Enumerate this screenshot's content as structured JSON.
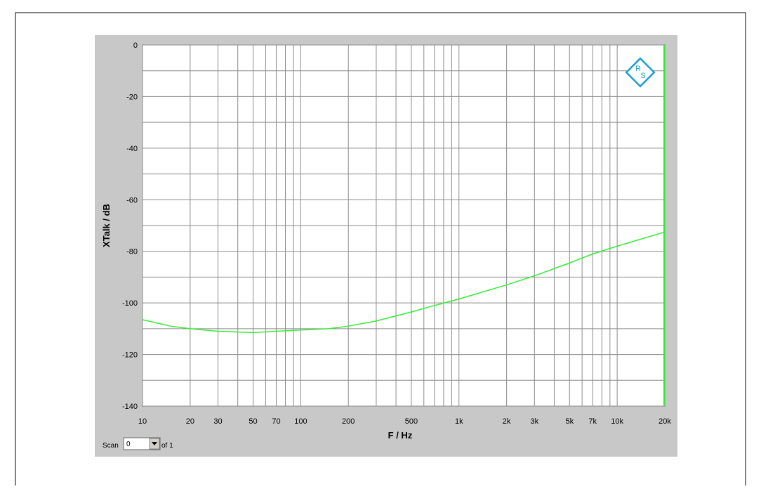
{
  "chart_data": {
    "type": "line",
    "xlabel": "F / Hz",
    "ylabel": "XTalk / dB",
    "xscale": "log",
    "xlim": [
      10,
      20000
    ],
    "ylim": [
      -140,
      0
    ],
    "xticks": [
      10,
      20,
      30,
      50,
      70,
      100,
      200,
      500,
      {
        "value": 1000,
        "label": "1k"
      },
      {
        "value": 2000,
        "label": "2k"
      },
      {
        "value": 3000,
        "label": "3k"
      },
      {
        "value": 5000,
        "label": "5k"
      },
      {
        "value": 7000,
        "label": "7k"
      },
      {
        "value": 10000,
        "label": "10k"
      },
      {
        "value": 20000,
        "label": "20k"
      }
    ],
    "x_minor_grid": [
      40,
      60,
      80,
      90,
      300,
      400,
      600,
      700,
      800,
      900,
      4000,
      6000,
      8000,
      9000
    ],
    "yticks": [
      0,
      -20,
      -40,
      -60,
      -80,
      -100,
      -120,
      -140
    ],
    "y_minor_grid": [
      -10,
      -30,
      -50,
      -70,
      -90,
      -110,
      -130
    ],
    "grid": true,
    "x": [
      10,
      15,
      20,
      30,
      50,
      70,
      100,
      150,
      200,
      300,
      500,
      700,
      1000,
      2000,
      3000,
      5000,
      7000,
      10000,
      20000
    ],
    "series": [
      {
        "color": "#33ee33",
        "values": [
          -106.5,
          -109,
          -110,
          -111,
          -111.5,
          -111,
          -110.5,
          -110,
          -109,
          -107,
          -103.5,
          -101,
          -98.5,
          -93,
          -89.5,
          -84.5,
          -81,
          -78,
          -72.5
        ]
      }
    ],
    "scan_label": "Scan",
    "scan_value": "0",
    "scan_of": "of 1"
  }
}
